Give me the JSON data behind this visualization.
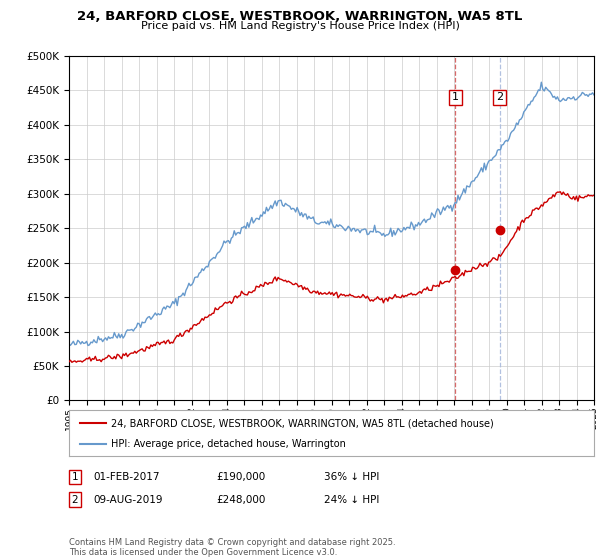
{
  "title": "24, BARFORD CLOSE, WESTBROOK, WARRINGTON, WA5 8TL",
  "subtitle": "Price paid vs. HM Land Registry's House Price Index (HPI)",
  "legend_label_red": "24, BARFORD CLOSE, WESTBROOK, WARRINGTON, WA5 8TL (detached house)",
  "legend_label_blue": "HPI: Average price, detached house, Warrington",
  "annotation1_label": "1",
  "annotation1_date": "01-FEB-2017",
  "annotation1_price": "£190,000",
  "annotation1_hpi": "36% ↓ HPI",
  "annotation2_label": "2",
  "annotation2_date": "09-AUG-2019",
  "annotation2_price": "£248,000",
  "annotation2_hpi": "24% ↓ HPI",
  "footer": "Contains HM Land Registry data © Crown copyright and database right 2025.\nThis data is licensed under the Open Government Licence v3.0.",
  "ylim": [
    0,
    500000
  ],
  "yticks": [
    0,
    50000,
    100000,
    150000,
    200000,
    250000,
    300000,
    350000,
    400000,
    450000,
    500000
  ],
  "xmin": 1995,
  "xmax": 2025,
  "red_color": "#cc0000",
  "blue_color": "#6699cc",
  "vline1_x": 2017.08,
  "vline2_x": 2019.6,
  "sale1_x": 2017.08,
  "sale1_y": 190000,
  "sale2_x": 2019.6,
  "sale2_y": 248000,
  "background_color": "#ffffff",
  "grid_color": "#cccccc"
}
